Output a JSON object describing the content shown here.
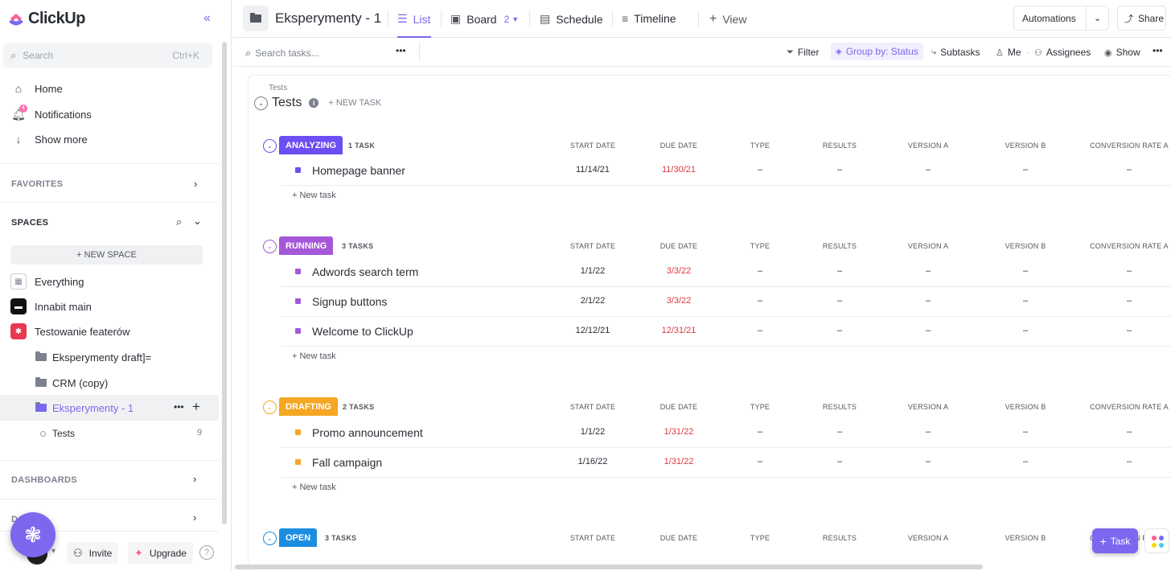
{
  "sidebar": {
    "logo_text": "ClickUp",
    "search_placeholder": "Search",
    "search_shortcut": "Ctrl+K",
    "nav": [
      {
        "label": "Home",
        "icon": "home-icon"
      },
      {
        "label": "Notifications",
        "icon": "bell-icon",
        "badge": "4"
      },
      {
        "label": "Show more",
        "icon": "arrow-down-icon"
      }
    ],
    "favorites_label": "FAVORITES",
    "spaces_label": "SPACES",
    "new_space_label": "+ NEW SPACE",
    "spaces": [
      {
        "label": "Everything",
        "icon": "grid-icon"
      },
      {
        "label": "Innabit main",
        "icon": "space-avatar-icon"
      },
      {
        "label": "Testowanie featerów",
        "icon": "space-avatar-icon"
      }
    ],
    "folders": [
      {
        "label": "Eksperymenty draft]="
      },
      {
        "label": "CRM (copy)"
      },
      {
        "label": "Eksperymenty - 1"
      }
    ],
    "sublist": {
      "label": "Tests",
      "count": "9"
    },
    "dashboards_label": "DASHBOARDS",
    "docs_label_partial": "D",
    "invite_label": "Invite",
    "upgrade_label": "Upgrade",
    "help_label": "?"
  },
  "topbar": {
    "title": "Eksperymenty - 1",
    "tabs": [
      {
        "label": "List",
        "icon": "list-icon",
        "active": true
      },
      {
        "label": "Board",
        "icon": "board-icon",
        "badge": "2"
      },
      {
        "label": "Schedule",
        "icon": "calendar-icon"
      },
      {
        "label": "Timeline",
        "icon": "timeline-icon"
      },
      {
        "label": "View",
        "icon": "plus-icon"
      }
    ],
    "automations_label": "Automations",
    "share_label": "Share"
  },
  "toolbar": {
    "search_placeholder": "Search tasks...",
    "filter_label": "Filter",
    "groupby_label": "Group by: Status",
    "subtasks_label": "Subtasks",
    "me_label": "Me",
    "assignees_label": "Assignees",
    "show_label": "Show"
  },
  "list": {
    "breadcrumb": "Tests",
    "title": "Tests",
    "new_task_label": "+ NEW TASK",
    "row_new_task_label": "+ New task",
    "columns": [
      "START DATE",
      "DUE DATE",
      "TYPE",
      "RESULTS",
      "VERSION A",
      "VERSION B",
      "CONVERSION RATE A"
    ],
    "groups": [
      {
        "status": "ANALYZING",
        "color": "#6c4ef2",
        "count_label": "1 TASK",
        "tasks": [
          {
            "name": "Homepage banner",
            "start": "11/14/21",
            "due": "11/30/21",
            "type": "–",
            "results": "–",
            "version_a": "–",
            "version_b": "–",
            "conv_a": "–"
          }
        ]
      },
      {
        "status": "RUNNING",
        "color": "#a458d8",
        "count_label": "3 TASKS",
        "tasks": [
          {
            "name": "Adwords search term",
            "start": "1/1/22",
            "due": "3/3/22",
            "type": "–",
            "results": "–",
            "version_a": "–",
            "version_b": "–",
            "conv_a": "–"
          },
          {
            "name": "Signup buttons",
            "start": "2/1/22",
            "due": "3/3/22",
            "type": "–",
            "results": "–",
            "version_a": "–",
            "version_b": "–",
            "conv_a": "–"
          },
          {
            "name": "Welcome to ClickUp",
            "start": "12/12/21",
            "due": "12/31/21",
            "type": "–",
            "results": "–",
            "version_a": "–",
            "version_b": "–",
            "conv_a": "–"
          }
        ]
      },
      {
        "status": "DRAFTING",
        "color": "#f5a623",
        "count_label": "2 TASKS",
        "tasks": [
          {
            "name": "Promo announcement",
            "start": "1/1/22",
            "due": "1/31/22",
            "type": "–",
            "results": "–",
            "version_a": "–",
            "version_b": "–",
            "conv_a": "–"
          },
          {
            "name": "Fall campaign",
            "start": "1/16/22",
            "due": "1/31/22",
            "type": "–",
            "results": "–",
            "version_a": "–",
            "version_b": "–",
            "conv_a": "–"
          }
        ]
      },
      {
        "status": "OPEN",
        "color": "#1c8de0",
        "count_label": "3 TASKS",
        "tasks": []
      }
    ]
  },
  "fab_task_label": "Task"
}
